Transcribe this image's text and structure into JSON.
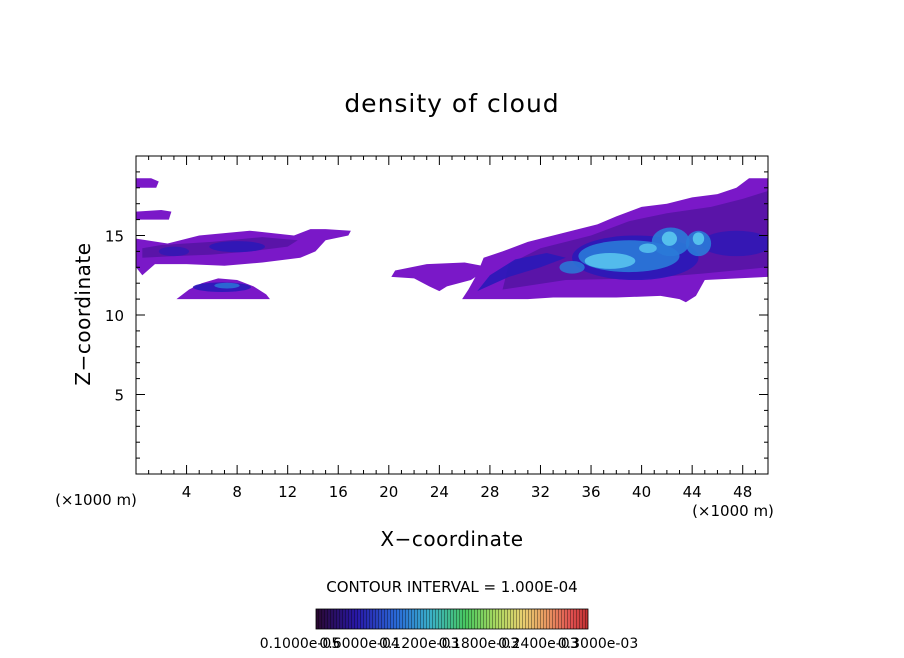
{
  "chart_data": {
    "type": "heatmap",
    "title": "density of cloud",
    "xlabel": "X−coordinate",
    "ylabel": "Z−coordinate",
    "x_unit_left": "(×1000 m)",
    "x_unit_right": "(×1000 m)",
    "xlim": [
      0,
      50
    ],
    "ylim": [
      0,
      20
    ],
    "x_ticks": [
      4,
      8,
      12,
      16,
      20,
      24,
      28,
      32,
      36,
      40,
      44,
      48
    ],
    "y_ticks": [
      5,
      10,
      15
    ],
    "contour_interval_label": "CONTOUR INTERVAL = 1.000E-04",
    "colorbar_labels": [
      "0.1000e-05",
      "0.6000e-04",
      "0.1200e-03",
      "0.1800e-03",
      "0.2400e-03",
      "0.3000e-03"
    ],
    "colorbar_range": [
      1e-06,
      0.00033
    ],
    "colorbar_colors": [
      "#2a0830",
      "#2818a8",
      "#2a6cd8",
      "#3ab0c8",
      "#48c860",
      "#a8d860",
      "#e8d070",
      "#e89060",
      "#e05050",
      "#c03030"
    ],
    "regions": [
      {
        "name": "left-upper-top",
        "x": [
          0,
          1.8
        ],
        "z": [
          17.9,
          18.6
        ],
        "level": "low"
      },
      {
        "name": "left-upper-mid",
        "x": [
          0,
          2.8
        ],
        "z": [
          15.9,
          16.6
        ],
        "level": "low"
      },
      {
        "name": "left-band",
        "x": [
          0,
          17.0
        ],
        "z": [
          12.5,
          15.4
        ],
        "level": "mid",
        "peak": 7e-05
      },
      {
        "name": "left-lower-blob",
        "x": [
          3.2,
          10.6
        ],
        "z": [
          10.9,
          12.3
        ],
        "level": "mid",
        "peak": 8e-05
      },
      {
        "name": "mid-strand",
        "x": [
          20.2,
          28.0
        ],
        "z": [
          11.5,
          13.3
        ],
        "level": "low"
      },
      {
        "name": "right-complex",
        "x": [
          25.8,
          50.0
        ],
        "z": [
          10.8,
          18.6
        ],
        "level": "high",
        "peak": 0.00016
      }
    ]
  }
}
